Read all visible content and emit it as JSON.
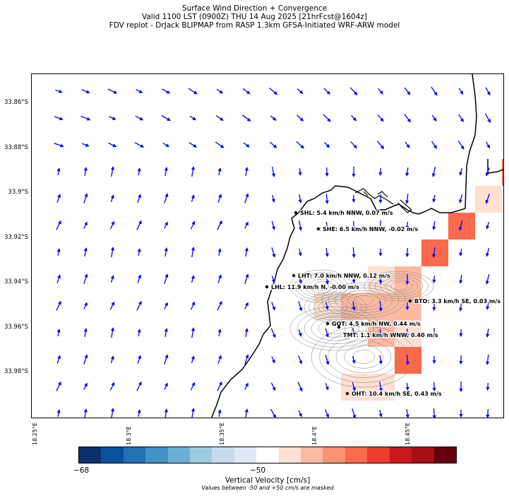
{
  "title": {
    "line1": "Surface Wind Direction + Convergence",
    "line2": "Valid 1100 LST (0900Z) THU 14 Aug 2025 [21hrFcst@1604z]",
    "line3": "FDV replot - DrJack BLIPMAP from RASP 1.3km GFSA-Initiated WRF-ARW model"
  },
  "axes": {
    "lat_labels": [
      "33.86°S",
      "33.88°S",
      "33.9°S",
      "33.92°S",
      "33.94°S",
      "33.96°S",
      "33.98°S"
    ],
    "lon_labels": [
      "18.25°E",
      "18.3°E",
      "18.35°E",
      "18.4°E",
      "18.45°E"
    ]
  },
  "stations": [
    {
      "code": "SHL",
      "label": "SHL: 5.4 km/h NNW, 0.07 m/s"
    },
    {
      "code": "SHE",
      "label": "SHE: 6.5 km/h NNW, -0.02 m/s"
    },
    {
      "code": "LHT",
      "label": "LHT: 7.0 km/h NNW, 0.12 m/s"
    },
    {
      "code": "LHL",
      "label": "LHL: 11.9 km/h N, -0.00 m/s"
    },
    {
      "code": "BTO",
      "label": "BTO: 3.3 km/h SE, 0.03 m/s"
    },
    {
      "code": "GOT",
      "label": "GOT: 4.5 km/h NW, 0.44 m/s"
    },
    {
      "code": "TMT",
      "label": "TMT: 1.1 km/h WNW, 0.40 m/s"
    },
    {
      "code": "OHT",
      "label": "OHT: 10.4 km/h SE, 0.43 m/s"
    }
  ],
  "colorbar": {
    "title": "Vertical Velocity [cm/s]",
    "note": "Values between -50 and +50 cm/s are masked",
    "tick_min": "−68",
    "tick_mid": "−50",
    "colors": [
      "#08306b",
      "#08519c",
      "#2171b5",
      "#4292c6",
      "#6baed6",
      "#9ecae1",
      "#c6dbef",
      "#deebf7",
      "#ffffff",
      "#fee0d2",
      "#fcbba1",
      "#fc9272",
      "#fb6a4a",
      "#ef3b2c",
      "#cb181d",
      "#a50f15",
      "#67000d"
    ]
  },
  "colors": {
    "wind_arrow": "#0000ff",
    "coastline": "#000000",
    "terrain_contour": "#808080"
  }
}
